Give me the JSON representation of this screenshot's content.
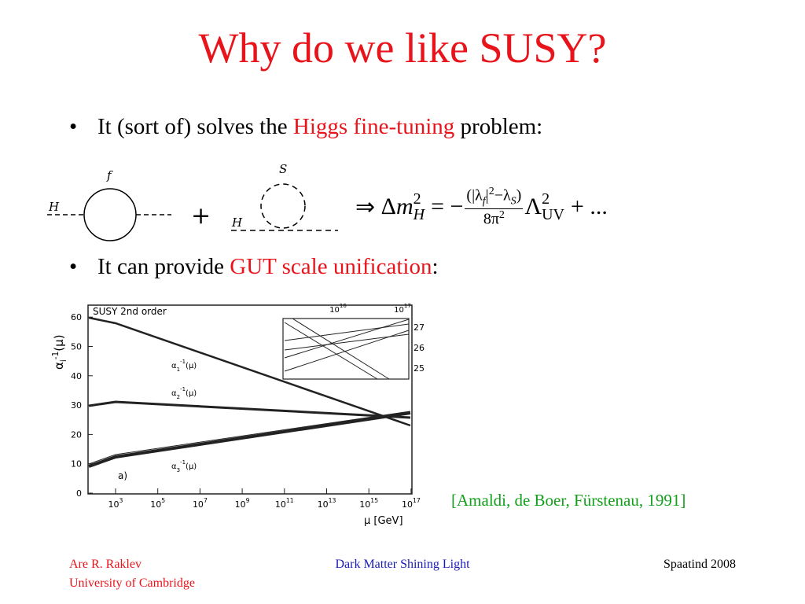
{
  "title": "Why do we like SUSY?",
  "bullets": [
    {
      "parts": [
        {
          "text": "It (sort of) solves the "
        },
        {
          "text": "Higgs fine-tuning",
          "highlight": true
        },
        {
          "text": " problem:"
        }
      ]
    },
    {
      "parts": [
        {
          "text": "It can provide "
        },
        {
          "text": "GUT scale unification",
          "highlight": true
        },
        {
          "text": ":"
        }
      ]
    }
  ],
  "diagrams": {
    "loop1": {
      "external": "H",
      "internal": "f"
    },
    "plus": "+",
    "loop2": {
      "external": "H",
      "internal": "S"
    }
  },
  "formula": {
    "arrow": "⇒",
    "delta": "Δ",
    "m": "m",
    "m_sup": "2",
    "m_sub": "H",
    "equals": "=",
    "minus": "−",
    "numerator": [
      "(|λ",
      "f",
      "|",
      "2",
      "−λ",
      "S",
      ")"
    ],
    "denominator": [
      "8π",
      "2"
    ],
    "lambda": "Λ",
    "lambda_sup": "2",
    "lambda_sub": "UV",
    "tail": "+ ..."
  },
  "figure": {
    "label": "SUSY 2nd order",
    "y_axis_label": {
      "base": "α",
      "sub": "i",
      "sup": "-1",
      "arg": "(μ)"
    },
    "yticks": [
      "0",
      "10",
      "20",
      "30",
      "40",
      "50",
      "60"
    ],
    "xticks": [
      {
        "base": "10",
        "exponent": "3"
      },
      {
        "base": "10",
        "exponent": "5"
      },
      {
        "base": "10",
        "exponent": "7"
      },
      {
        "base": "10",
        "exponent": "9"
      },
      {
        "base": "10",
        "exponent": "11"
      },
      {
        "base": "10",
        "exponent": "13"
      },
      {
        "base": "10",
        "exponent": "15"
      },
      {
        "base": "10",
        "exponent": "17"
      }
    ],
    "x_axis_label": "μ [GeV]",
    "curves": [
      {
        "base": "α",
        "sub": "1",
        "sup": "-1",
        "arg": "(μ)"
      },
      {
        "base": "α",
        "sub": "2",
        "sup": "-1",
        "arg": "(μ)"
      },
      {
        "base": "α",
        "sub": "3",
        "sup": "-1",
        "arg": "(μ)"
      }
    ],
    "panel": "a)",
    "inset_xticks": [
      {
        "base": "10",
        "exponent": "16"
      },
      {
        "base": "10",
        "exponent": "17"
      }
    ],
    "inset_yticks": [
      "27",
      "26",
      "25"
    ]
  },
  "citation": "[Amaldi, de Boer, Fürstenau, 1991]",
  "footer": {
    "author": "Are R. Raklev",
    "affiliation": "University of Cambridge",
    "center": "Dark Matter Shining Light",
    "right": "Spaatind 2008"
  }
}
